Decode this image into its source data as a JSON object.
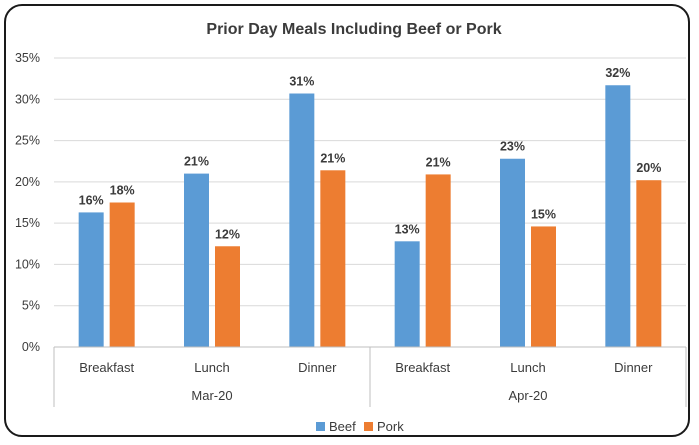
{
  "chart_data": {
    "type": "bar",
    "title": "Prior Day Meals Including Beef or Pork",
    "xlabel": "",
    "ylabel": "",
    "ylim": [
      0,
      35
    ],
    "yticks": [
      "0%",
      "5%",
      "10%",
      "15%",
      "20%",
      "25%",
      "30%",
      "35%"
    ],
    "grid": true,
    "legend_position": "bottom",
    "groups": [
      {
        "label": "Mar-20",
        "categories": [
          "Breakfast",
          "Lunch",
          "Dinner"
        ]
      },
      {
        "label": "Apr-20",
        "categories": [
          "Breakfast",
          "Lunch",
          "Dinner"
        ]
      }
    ],
    "categories": [
      "Breakfast",
      "Lunch",
      "Dinner",
      "Breakfast",
      "Lunch",
      "Dinner"
    ],
    "series": [
      {
        "name": "Beef",
        "color": "#5B9BD5",
        "values": [
          16.3,
          21.0,
          30.7,
          12.8,
          22.8,
          31.7
        ],
        "labels": [
          "16%",
          "21%",
          "31%",
          "13%",
          "23%",
          "32%"
        ]
      },
      {
        "name": "Pork",
        "color": "#ED7D31",
        "values": [
          17.5,
          12.2,
          21.4,
          20.9,
          14.6,
          20.2
        ],
        "labels": [
          "18%",
          "12%",
          "21%",
          "21%",
          "15%",
          "20%"
        ]
      }
    ]
  }
}
